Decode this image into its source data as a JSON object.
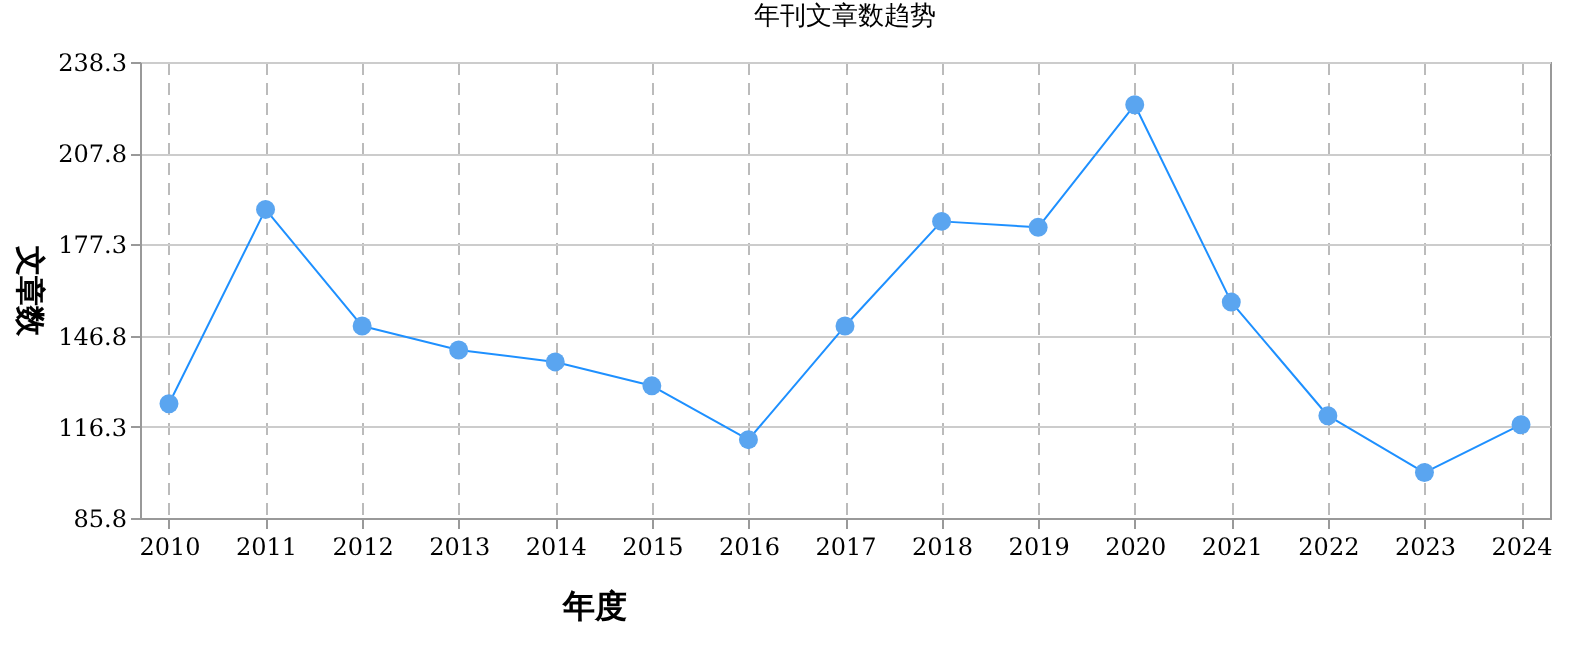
{
  "chart_data": {
    "type": "line",
    "title": "年刊文章数趋势",
    "xlabel": "年度",
    "ylabel": "文章数",
    "categories": [
      "2010",
      "2011",
      "2012",
      "2013",
      "2014",
      "2015",
      "2016",
      "2017",
      "2018",
      "2019",
      "2020",
      "2021",
      "2022",
      "2023",
      "2024"
    ],
    "series": [
      {
        "color": "#1e90ff",
        "values": [
          124,
          189,
          150,
          142,
          138,
          130,
          112,
          150,
          185,
          183,
          224,
          158,
          120,
          101,
          117
        ]
      }
    ],
    "ylim": [
      85.8,
      238.3
    ],
    "yticks": [
      85.8,
      116.3,
      146.8,
      177.3,
      207.8,
      238.3
    ],
    "grid": true,
    "marker": "circle",
    "line_style": "solid"
  }
}
